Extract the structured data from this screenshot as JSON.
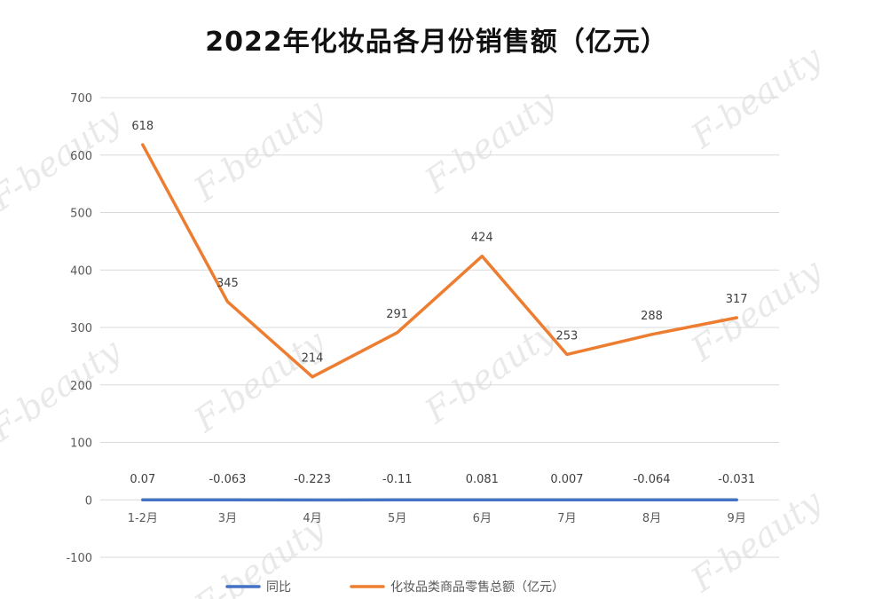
{
  "chart_data": {
    "type": "line",
    "title": "2022年化妆品各月份销售额（亿元）",
    "categories": [
      "1-2月",
      "3月",
      "4月",
      "5月",
      "6月",
      "7月",
      "8月",
      "9月"
    ],
    "ylim": [
      -100,
      700
    ],
    "yticks": [
      -100,
      0,
      100,
      200,
      300,
      400,
      500,
      600,
      700
    ],
    "grid": true,
    "legend_position": "bottom",
    "series": [
      {
        "name": "同比",
        "color": "#4472c4",
        "values": [
          0.07,
          -0.063,
          -0.223,
          -0.11,
          0.081,
          0.007,
          -0.064,
          -0.031
        ],
        "labels": [
          "0.07",
          "-0.063",
          "-0.223",
          "-0.11",
          "0.081",
          "0.007",
          "-0.064",
          "-0.031"
        ]
      },
      {
        "name": "化妆品类商品零售总额（亿元）",
        "color": "#ed7d31",
        "values": [
          618,
          345,
          214,
          291,
          424,
          253,
          288,
          317
        ],
        "labels": [
          "618",
          "345",
          "214",
          "291",
          "424",
          "253",
          "288",
          "317"
        ]
      }
    ],
    "watermark": "F-beauty"
  }
}
